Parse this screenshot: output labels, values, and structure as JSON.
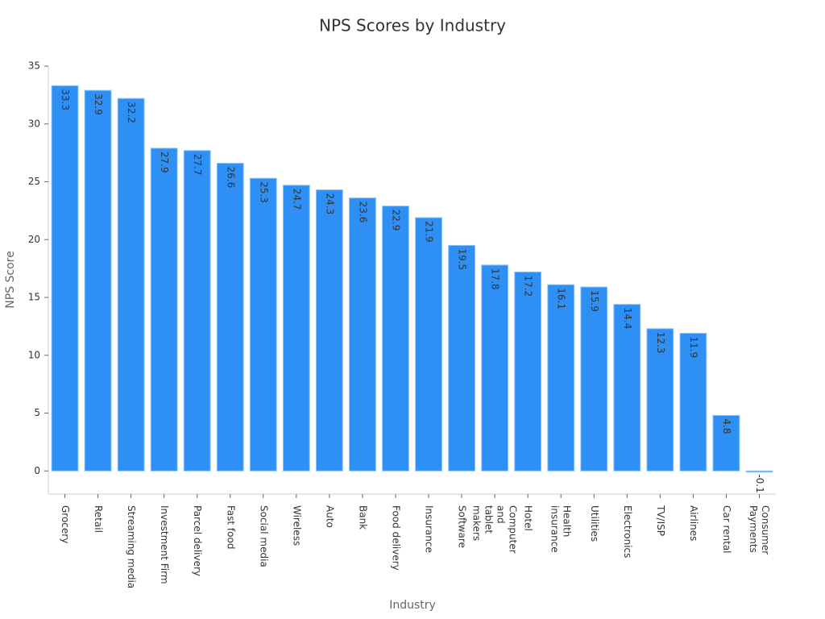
{
  "chart_data": {
    "type": "bar",
    "title": "NPS Scores by Industry",
    "x_label": "Industry",
    "y_label": "NPS Score",
    "categories": [
      "Grocery",
      "Retail",
      "Streaming media",
      "Investment Firm",
      "Parcel delivery",
      "Fast food",
      "Social media",
      "Wireless",
      "Auto",
      "Bank",
      "Food delivery",
      "Insurance",
      "Software",
      "Computer and tablet makers",
      "Hotel",
      "Health insurance",
      "Utilities",
      "Electronics",
      "TV/ISP",
      "Airlines",
      "Car rental",
      "Consumer Payments"
    ],
    "values": [
      33.3,
      32.9,
      32.2,
      27.9,
      27.7,
      26.6,
      25.3,
      24.7,
      24.3,
      23.6,
      22.9,
      21.9,
      19.5,
      17.8,
      17.2,
      16.1,
      15.9,
      14.4,
      12.3,
      11.9,
      4.8,
      -0.1
    ],
    "color": "#2e90f5",
    "ylim": [
      -2,
      35
    ],
    "yticks": [
      0,
      5,
      10,
      15,
      20,
      25,
      30,
      35
    ],
    "grid": false
  }
}
